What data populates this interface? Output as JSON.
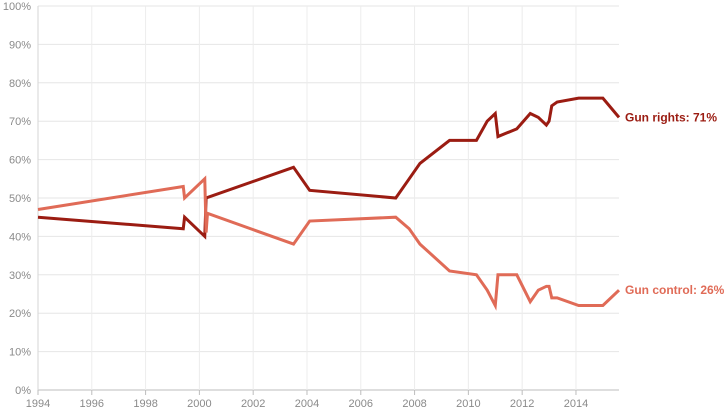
{
  "chart_data": {
    "type": "line",
    "xlim": [
      1994,
      2015.6
    ],
    "ylim": [
      0,
      100
    ],
    "y_ticks": [
      {
        "value": 0,
        "label": "0%"
      },
      {
        "value": 10,
        "label": "10%"
      },
      {
        "value": 20,
        "label": "20%"
      },
      {
        "value": 30,
        "label": "30%"
      },
      {
        "value": 40,
        "label": "40%"
      },
      {
        "value": 50,
        "label": "50%"
      },
      {
        "value": 60,
        "label": "60%"
      },
      {
        "value": 70,
        "label": "70%"
      },
      {
        "value": 80,
        "label": "80%"
      },
      {
        "value": 90,
        "label": "90%"
      },
      {
        "value": 100,
        "label": "100%"
      }
    ],
    "x_ticks": [
      {
        "value": 1994,
        "label": "1994"
      },
      {
        "value": 1996,
        "label": "1996"
      },
      {
        "value": 1998,
        "label": "1998"
      },
      {
        "value": 2000,
        "label": "2000"
      },
      {
        "value": 2002,
        "label": "2002"
      },
      {
        "value": 2004,
        "label": "2004"
      },
      {
        "value": 2006,
        "label": "2006"
      },
      {
        "value": 2008,
        "label": "2008"
      },
      {
        "value": 2010,
        "label": "2010"
      },
      {
        "value": 2012,
        "label": "2012"
      },
      {
        "value": 2014,
        "label": "2014"
      }
    ],
    "grid": true,
    "series": [
      {
        "label": "Gun rights: 71%",
        "color": "#9b1c12",
        "points": [
          [
            1994.0,
            45
          ],
          [
            1999.4,
            42
          ],
          [
            1999.45,
            45
          ],
          [
            2000.2,
            40
          ],
          [
            2000.25,
            50
          ],
          [
            2003.5,
            58
          ],
          [
            2004.1,
            52
          ],
          [
            2007.3,
            50
          ],
          [
            2007.8,
            55
          ],
          [
            2008.2,
            59
          ],
          [
            2009.3,
            65
          ],
          [
            2010.3,
            65
          ],
          [
            2010.7,
            70
          ],
          [
            2011.0,
            72
          ],
          [
            2011.1,
            66
          ],
          [
            2011.8,
            68
          ],
          [
            2012.3,
            72
          ],
          [
            2012.6,
            71
          ],
          [
            2012.9,
            69
          ],
          [
            2013.0,
            70
          ],
          [
            2013.1,
            74
          ],
          [
            2013.3,
            75
          ],
          [
            2014.1,
            76
          ],
          [
            2015.0,
            76
          ],
          [
            2015.6,
            71
          ]
        ]
      },
      {
        "label": "Gun control: 26%",
        "color": "#e06b57",
        "points": [
          [
            1994.0,
            47
          ],
          [
            1999.4,
            53
          ],
          [
            1999.45,
            50
          ],
          [
            2000.2,
            55
          ],
          [
            2000.25,
            41
          ],
          [
            2000.3,
            46
          ],
          [
            2003.5,
            38
          ],
          [
            2004.1,
            44
          ],
          [
            2007.3,
            45
          ],
          [
            2007.8,
            42
          ],
          [
            2008.2,
            38
          ],
          [
            2009.3,
            31
          ],
          [
            2010.3,
            30
          ],
          [
            2010.7,
            26
          ],
          [
            2011.0,
            22
          ],
          [
            2011.1,
            30
          ],
          [
            2011.8,
            30
          ],
          [
            2012.3,
            23
          ],
          [
            2012.6,
            26
          ],
          [
            2012.9,
            27
          ],
          [
            2013.0,
            27
          ],
          [
            2013.1,
            24
          ],
          [
            2013.3,
            24
          ],
          [
            2014.1,
            22
          ],
          [
            2015.0,
            22
          ],
          [
            2015.6,
            26
          ]
        ]
      }
    ]
  }
}
